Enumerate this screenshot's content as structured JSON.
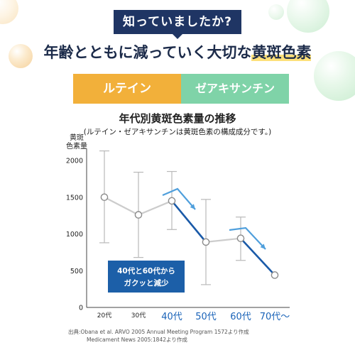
{
  "header": {
    "badge": "知っていましたか?",
    "headline_prefix": "年齢とともに減っていく大切な",
    "headline_highlight": "黄斑色素"
  },
  "tags": {
    "left": "ルテイン",
    "right": "ゼアキサンチン"
  },
  "chart_data": {
    "type": "line",
    "title": "年代別黄斑色素量の推移",
    "subtitle": "(ルテイン・ゼアキサンチンは黄斑色素の構成成分です。)",
    "ylabel_line1": "黄斑",
    "ylabel_line2": "色素量",
    "ylim": [
      0,
      2000
    ],
    "yticks": [
      "0",
      "500",
      "1000",
      "1500",
      "2000"
    ],
    "categories": [
      "20代",
      "30代",
      "40代",
      "50代",
      "60代",
      "70代〜"
    ],
    "series": [
      {
        "values": [
          1500,
          1260,
          1450,
          890,
          940,
          440
        ],
        "error_high": [
          2130,
          1840,
          1850,
          1470,
          1230,
          null
        ],
        "error_low": [
          880,
          680,
          1060,
          310,
          640,
          null
        ]
      }
    ],
    "callout_line1": "40代と60代から",
    "callout_line2": "ガクッと減少",
    "colors": {
      "normal_line": "#cccccc",
      "decline_line": "#1a5aa8",
      "arrow": "#4f9fdc",
      "callout_bg": "#1c5fa8",
      "highlight_label": "#1a63b8",
      "error_bar": "#b9b9b9"
    }
  },
  "source": {
    "line1": "出典:Obana et al. ARVO 2005 Annual Meeting Program 1572より作成",
    "line2": "Medicament News 2005:1842より作成"
  }
}
